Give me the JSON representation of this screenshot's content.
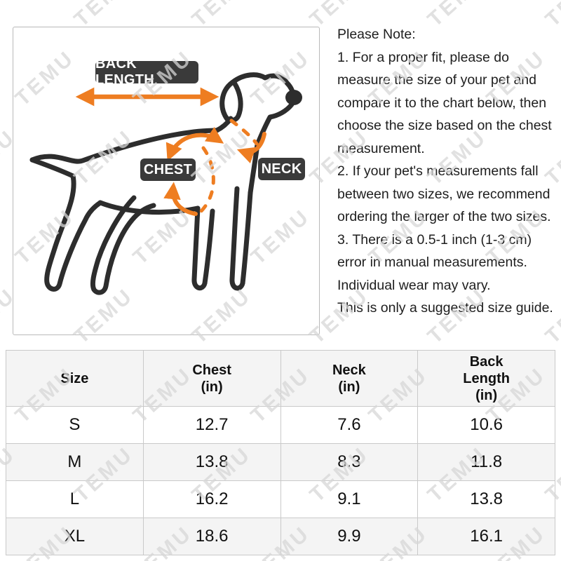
{
  "watermark": {
    "text": "TEMU",
    "color": "#d7d7d7"
  },
  "diagram": {
    "labels": {
      "back_length": "BACK LENGTH",
      "chest": "CHEST",
      "neck": "NECK"
    },
    "colors": {
      "accent_orange": "#ee7d21",
      "label_bg": "#3a3a3a",
      "outline": "#2d2d2d"
    }
  },
  "notes": {
    "lines": [
      "Please Note:",
      "1. For a proper fit, please do",
      "measure the size of your pet and",
      "compare it to the chart below, then",
      "choose the size based on the chest",
      "measurement.",
      "2. If your pet's measurements fall",
      "between two sizes, we recommend",
      "ordering the larger of the two sizes.",
      "3. There is a 0.5-1 inch (1-3 cm)",
      "error in manual measurements.",
      "Individual wear may vary.",
      "This is only a suggested size guide."
    ]
  },
  "size_table": {
    "headers": [
      [
        "Size"
      ],
      [
        "Chest",
        "(in)"
      ],
      [
        "Neck",
        "(in)"
      ],
      [
        "Back",
        "Length",
        "(in)"
      ]
    ],
    "rows": [
      {
        "size": "S",
        "chest": "12.7",
        "neck": "7.6",
        "back_length": "10.6"
      },
      {
        "size": "M",
        "chest": "13.8",
        "neck": "8.3",
        "back_length": "11.8"
      },
      {
        "size": "L",
        "chest": "16.2",
        "neck": "9.1",
        "back_length": "13.8"
      },
      {
        "size": "XL",
        "chest": "18.6",
        "neck": "9.9",
        "back_length": "16.1"
      }
    ]
  }
}
